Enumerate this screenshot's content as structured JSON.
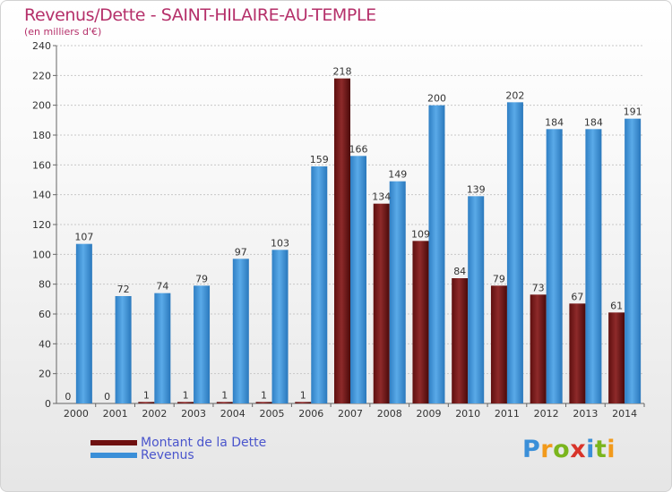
{
  "title": "Revenus/Dette - SAINT-HILAIRE-AU-TEMPLE",
  "subtitle": "(en milliers d'€)",
  "logo_text": "Proxiti",
  "colors": {
    "debt": "#7a1c1c",
    "revenue": "#3a8fd8",
    "title": "#b5306a",
    "legend_text": "#4a55cc"
  },
  "chart_data": {
    "type": "bar",
    "title": "Revenus/Dette - SAINT-HILAIRE-AU-TEMPLE",
    "subtitle": "(en milliers d'€)",
    "xlabel": "",
    "ylabel": "",
    "ylim": [
      0,
      240
    ],
    "yticks": [
      0,
      20,
      40,
      60,
      80,
      100,
      120,
      140,
      160,
      180,
      200,
      220,
      240
    ],
    "grid": true,
    "legend_position": "bottom-left",
    "categories": [
      "2000",
      "2001",
      "2002",
      "2003",
      "2004",
      "2005",
      "2006",
      "2007",
      "2008",
      "2009",
      "2010",
      "2011",
      "2012",
      "2013",
      "2014"
    ],
    "series": [
      {
        "name": "Montant de la Dette",
        "values": [
          0,
          0,
          1,
          1,
          1,
          1,
          1,
          218,
          134,
          109,
          84,
          79,
          73,
          67,
          61
        ]
      },
      {
        "name": "Revenus",
        "values": [
          107,
          72,
          74,
          79,
          97,
          103,
          159,
          166,
          149,
          200,
          139,
          202,
          184,
          184,
          191
        ]
      }
    ]
  }
}
